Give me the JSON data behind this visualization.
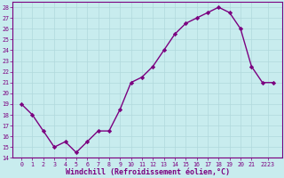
{
  "x": [
    0,
    1,
    2,
    3,
    4,
    5,
    6,
    7,
    8,
    9,
    10,
    11,
    12,
    13,
    14,
    15,
    16,
    17,
    18,
    19,
    20,
    21,
    22,
    23
  ],
  "y": [
    19,
    18,
    16.5,
    15,
    15.5,
    14.5,
    15.5,
    16.5,
    16.5,
    18.5,
    21,
    21.5,
    22.5,
    24,
    25.5,
    26.5,
    27,
    27.5,
    28,
    27.5,
    26,
    22.5,
    21,
    21
  ],
  "line_color": "#7b0080",
  "marker": "D",
  "marker_size": 2.2,
  "bg_color": "#c8ecee",
  "grid_color": "#b0d8dc",
  "xlabel": "Windchill (Refroidissement éolien,°C)",
  "ylim": [
    14,
    28.5
  ],
  "yticks": [
    14,
    15,
    16,
    17,
    18,
    19,
    20,
    21,
    22,
    23,
    24,
    25,
    26,
    27,
    28
  ],
  "xtick_labels": [
    "0",
    "1",
    "2",
    "3",
    "4",
    "5",
    "6",
    "7",
    "8",
    "9",
    "10",
    "11",
    "12",
    "13",
    "14",
    "15",
    "16",
    "17",
    "18",
    "19",
    "20",
    "21",
    "2223"
  ],
  "xtick_positions": [
    0,
    1,
    2,
    3,
    4,
    5,
    6,
    7,
    8,
    9,
    10,
    11,
    12,
    13,
    14,
    15,
    16,
    17,
    18,
    19,
    20,
    21,
    22.5
  ],
  "tick_fontsize": 4.8,
  "xlabel_fontsize": 6.0,
  "line_width": 1.0
}
